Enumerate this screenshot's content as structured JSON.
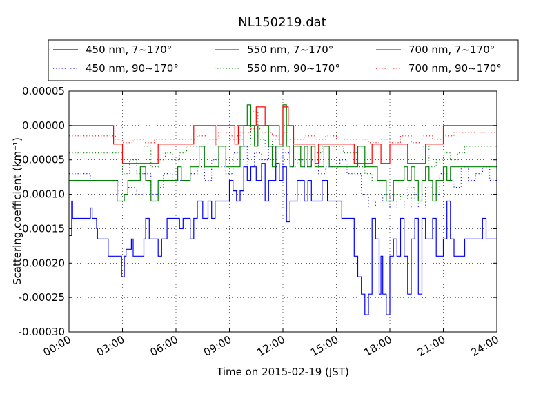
{
  "chart_data": {
    "type": "line",
    "title": "NL150219.dat",
    "xlabel": "Time on 2015-02-19 (JST)",
    "ylabel": "Scattering coefficient (km⁻¹)",
    "xlim": [
      0,
      24
    ],
    "ylim": [
      -0.0003,
      5e-05
    ],
    "x_tick_labels": [
      "00:00",
      "03:00",
      "06:00",
      "09:00",
      "12:00",
      "15:00",
      "18:00",
      "21:00",
      "24:00"
    ],
    "y_tick_labels": [
      "0.00005",
      "0.00000",
      "-0.00005",
      "-0.00010",
      "-0.00015",
      "-0.00020",
      "-0.00025",
      "-0.00030"
    ],
    "grid": true,
    "legend_position": "top",
    "series": [
      {
        "name": "450 nm, 7∼170°",
        "color": "#0000ff",
        "style": "solid",
        "x": [
          0,
          0.15,
          0.2,
          0.35,
          0.4,
          0.5,
          1.1,
          1.2,
          1.3,
          1.5,
          1.55,
          1.6,
          2.0,
          2.1,
          2.2,
          2.8,
          2.9,
          2.95,
          3.1,
          3.2,
          3.5,
          3.6,
          4.0,
          4.2,
          4.3,
          4.5,
          5.0,
          5.2,
          5.5,
          6.0,
          6.2,
          6.4,
          6.6,
          6.8,
          7.0,
          7.2,
          7.5,
          7.8,
          8.0,
          8.2,
          8.5,
          9.0,
          9.2,
          9.4,
          9.6,
          9.8,
          10.0,
          10.2,
          10.5,
          10.8,
          11.0,
          11.2,
          11.4,
          11.6,
          11.8,
          12.0,
          12.2,
          12.4,
          12.6,
          12.8,
          13.0,
          13.2,
          13.4,
          13.6,
          13.8,
          14.0,
          14.2,
          14.5,
          14.8,
          15.0,
          15.3,
          15.6,
          16.0,
          16.2,
          16.4,
          16.6,
          16.8,
          17.0,
          17.2,
          17.4,
          17.5,
          17.6,
          17.8,
          18.0,
          18.2,
          18.4,
          18.6,
          18.8,
          19.0,
          19.2,
          19.4,
          19.6,
          19.8,
          20.0,
          20.2,
          20.4,
          20.6,
          20.8,
          21.0,
          21.2,
          21.4,
          21.6,
          22.0,
          22.2,
          22.5,
          23.0,
          23.2,
          23.4,
          24.0
        ],
        "y": [
          -0.00016,
          -0.00011,
          -0.000135,
          -0.000135,
          -0.000135,
          -0.000135,
          -0.000135,
          -0.00012,
          -0.000135,
          -0.000135,
          -0.00015,
          -0.000165,
          -0.000165,
          -0.000165,
          -0.00019,
          -0.00019,
          -0.00019,
          -0.00022,
          -0.00019,
          -0.00018,
          -0.000165,
          -0.00019,
          -0.00019,
          -0.000165,
          -0.000135,
          -0.000165,
          -0.00019,
          -0.000165,
          -0.000135,
          -0.000135,
          -0.00015,
          -0.000135,
          -0.000135,
          -0.000165,
          -0.000135,
          -0.00011,
          -0.000135,
          -0.00011,
          -0.000135,
          -0.00011,
          -0.00011,
          -8e-05,
          -9.5e-05,
          -0.00011,
          -9.5e-05,
          -6e-05,
          -8e-05,
          -6e-05,
          -8e-05,
          -5.5e-05,
          -0.00011,
          -8e-05,
          -8e-05,
          -5.5e-05,
          -8e-05,
          -6e-05,
          -0.00014,
          -0.00011,
          -0.00011,
          -8e-05,
          -8e-05,
          -0.00011,
          -8e-05,
          -0.00011,
          -0.00011,
          -0.00011,
          -8e-05,
          -0.00011,
          -0.00011,
          -0.00011,
          -0.000135,
          -0.000135,
          -0.00019,
          -0.00022,
          -0.000245,
          -0.000275,
          -0.000245,
          -0.000135,
          -0.000165,
          -0.000245,
          -0.00019,
          -0.000245,
          -0.000275,
          -0.00019,
          -0.000165,
          -0.00019,
          -0.000135,
          -0.00019,
          -0.000245,
          -0.000165,
          -0.000135,
          -0.000245,
          -0.000135,
          -0.000165,
          -0.000165,
          -0.000135,
          -0.00019,
          -0.00019,
          -0.000165,
          -0.00011,
          -0.000165,
          -0.00019,
          -0.00019,
          -0.000165,
          -0.000165,
          -0.000165,
          -0.000135,
          -0.000165,
          -0.000165
        ]
      },
      {
        "name": "450 nm, 90∼170°",
        "color": "#0000ff",
        "style": "dotted",
        "x": [
          0,
          0.5,
          1.2,
          1.6,
          2.2,
          2.8,
          3.3,
          3.8,
          4.2,
          4.6,
          5.0,
          5.3,
          5.8,
          6.3,
          6.8,
          7.2,
          7.6,
          8.0,
          8.4,
          8.8,
          9.2,
          9.6,
          10.0,
          10.4,
          10.8,
          11.2,
          11.6,
          12.0,
          12.4,
          12.8,
          13.2,
          13.6,
          14.0,
          14.4,
          14.8,
          15.2,
          15.6,
          16.0,
          16.4,
          16.8,
          17.2,
          17.6,
          18.0,
          18.4,
          18.8,
          19.2,
          19.6,
          20.0,
          20.4,
          20.8,
          21.2,
          21.6,
          22.0,
          22.4,
          22.8,
          23.2,
          23.6,
          24.0
        ],
        "y": [
          -7e-05,
          -7e-05,
          -8e-05,
          -8e-05,
          -8e-05,
          -0.0001,
          -9e-05,
          -0.0001,
          -7e-05,
          -0.0001,
          -9e-05,
          -7e-05,
          -8e-05,
          -8e-05,
          -7e-05,
          -6e-05,
          -8e-05,
          -5e-05,
          -6e-05,
          -7e-05,
          -4e-05,
          -3e-05,
          -6e-05,
          -4e-05,
          -5e-05,
          -3e-05,
          -6e-05,
          -4e-05,
          -6e-05,
          -5e-05,
          -6e-05,
          -5e-05,
          -7e-05,
          -6e-05,
          -6e-05,
          -5e-05,
          -7e-05,
          -7e-05,
          -0.0001,
          -0.00012,
          -0.00011,
          -0.0001,
          -0.00012,
          -0.00011,
          -0.00012,
          -0.0001,
          -0.00012,
          -9e-05,
          -0.0001,
          -7e-05,
          -8e-05,
          -9e-05,
          -6e-05,
          -8e-05,
          -7e-05,
          -6e-05,
          -8e-05,
          -8e-05
        ]
      },
      {
        "name": "550 nm, 7∼170°",
        "color": "#008000",
        "style": "solid",
        "x": [
          0,
          0.4,
          1.0,
          1.5,
          2.0,
          2.5,
          2.7,
          2.9,
          3.1,
          3.3,
          3.5,
          3.7,
          4.0,
          4.3,
          4.6,
          5.0,
          5.4,
          5.8,
          6.1,
          6.3,
          6.5,
          6.8,
          7.0,
          7.3,
          7.6,
          8.0,
          8.4,
          8.8,
          9.2,
          9.6,
          9.8,
          10.0,
          10.2,
          10.4,
          10.6,
          10.8,
          11.0,
          11.2,
          11.4,
          11.6,
          11.8,
          12.0,
          12.2,
          12.4,
          12.6,
          12.8,
          13.0,
          13.2,
          13.4,
          13.6,
          13.8,
          14.0,
          14.3,
          14.6,
          15.0,
          15.4,
          15.8,
          16.2,
          16.6,
          17.0,
          17.3,
          17.6,
          17.8,
          18.0,
          18.2,
          18.5,
          18.8,
          19.0,
          19.2,
          19.4,
          19.6,
          19.8,
          20.0,
          20.2,
          20.4,
          20.6,
          21.0,
          21.2,
          21.4,
          21.6,
          22.0,
          22.4,
          23.0,
          23.5,
          24.0
        ],
        "y": [
          -8e-05,
          -8e-05,
          -8e-05,
          -8e-05,
          -8e-05,
          -8e-05,
          -0.00011,
          -0.00011,
          -0.0001,
          -8e-05,
          -8e-05,
          -8e-05,
          -6e-05,
          -8e-05,
          -0.00011,
          -8e-05,
          -8e-05,
          -8e-05,
          -6e-05,
          -8e-05,
          -8e-05,
          -6e-05,
          -6e-05,
          -3e-05,
          -6e-05,
          -6e-05,
          -3e-05,
          -6e-05,
          -6e-05,
          -3e-05,
          0,
          3e-05,
          0,
          -3e-05,
          0,
          0,
          0,
          -3e-05,
          -6e-05,
          -3e-05,
          -3e-05,
          3e-05,
          -3e-05,
          -6e-05,
          -3e-05,
          -3e-05,
          -6e-05,
          -3e-05,
          -6e-05,
          -3e-05,
          -6e-05,
          -6e-05,
          -3e-05,
          -6e-05,
          -6e-05,
          -6e-05,
          -6e-05,
          -3e-05,
          -6e-05,
          -6e-05,
          -8e-05,
          -8e-05,
          -0.00011,
          -0.00011,
          -8e-05,
          -8e-05,
          -6e-05,
          -8e-05,
          -6e-05,
          -8e-05,
          -0.00011,
          -8e-05,
          -6e-05,
          -8e-05,
          -0.00011,
          -8e-05,
          -6e-05,
          -8e-05,
          -6e-05,
          -6e-05,
          -6e-05,
          -6e-05,
          -6e-05,
          -6e-05,
          -6e-05
        ]
      },
      {
        "name": "550 nm, 90∼170°",
        "color": "#008000",
        "style": "dotted",
        "x": [
          0,
          0.6,
          1.2,
          1.8,
          2.4,
          3.0,
          3.4,
          3.8,
          4.2,
          4.6,
          5.0,
          5.4,
          5.8,
          6.2,
          6.6,
          7.0,
          7.4,
          7.8,
          8.2,
          8.6,
          9.0,
          9.4,
          9.8,
          10.2,
          10.6,
          11.0,
          11.4,
          11.8,
          12.2,
          12.6,
          13.0,
          13.4,
          13.8,
          14.2,
          14.6,
          15.0,
          15.4,
          15.8,
          16.2,
          16.6,
          17.0,
          17.4,
          17.8,
          18.2,
          18.6,
          19.0,
          19.4,
          19.8,
          20.2,
          20.6,
          21.0,
          21.4,
          21.8,
          22.2,
          22.6,
          23.0,
          23.4,
          24.0
        ],
        "y": [
          -4e-05,
          -4e-05,
          -4e-05,
          -4e-05,
          -4e-05,
          -7e-05,
          -5e-05,
          -7e-05,
          -3e-05,
          -6e-05,
          -5e-05,
          -4e-05,
          -5e-05,
          -4e-05,
          -3e-05,
          -3e-05,
          -3e-05,
          -2e-05,
          -3e-05,
          -3e-05,
          -2e-05,
          -2e-05,
          -3e-05,
          2e-05,
          -2e-05,
          -3e-05,
          -2e-05,
          -3e-05,
          -2e-05,
          -3e-05,
          -3e-05,
          -3e-05,
          -4e-05,
          -3e-05,
          -3e-05,
          -3e-05,
          -4e-05,
          -4e-05,
          -6e-05,
          -7e-05,
          -8e-05,
          -0.0001,
          -0.00011,
          -0.0001,
          -0.00011,
          -9e-05,
          -0.00011,
          -3e-05,
          -6e-05,
          -5e-05,
          -4e-05,
          -5e-05,
          -4e-05,
          -3e-05,
          -3e-05,
          -3e-05,
          -3e-05,
          -3e-05
        ]
      },
      {
        "name": "700 nm, 7∼170°",
        "color": "#ff0000",
        "style": "solid",
        "x": [
          0,
          0.5,
          1.0,
          1.5,
          2.0,
          2.4,
          2.5,
          2.9,
          3.0,
          3.5,
          4.0,
          4.5,
          5.0,
          5.5,
          5.9,
          6.2,
          6.5,
          7.0,
          7.2,
          7.5,
          8.0,
          8.2,
          8.3,
          8.6,
          9.0,
          9.3,
          9.5,
          9.8,
          10.0,
          10.5,
          10.6,
          11.0,
          11.2,
          11.6,
          11.8,
          12.0,
          12.3,
          12.6,
          13.0,
          13.5,
          13.8,
          14.0,
          14.2,
          14.6,
          15.0,
          15.5,
          16.0,
          16.5,
          17.0,
          17.5,
          18.0,
          18.5,
          18.8,
          19.0,
          19.5,
          20.0,
          20.5,
          21.0,
          21.5,
          22.0,
          22.5,
          23.0,
          24.0
        ],
        "y": [
          0,
          0,
          0,
          0,
          0,
          0,
          -2.7e-05,
          -2.7e-05,
          -5.5e-05,
          -5.5e-05,
          -5.5e-05,
          -5.5e-05,
          -2.7e-05,
          -2.7e-05,
          -2.7e-05,
          -2.7e-05,
          -2.7e-05,
          0,
          0,
          0,
          0,
          -2.7e-05,
          0,
          0,
          0,
          -2.7e-05,
          0,
          0,
          0,
          2.7e-05,
          2.7e-05,
          0,
          0,
          0,
          -2.7e-05,
          2.7e-05,
          0,
          -2.7e-05,
          -2.7e-05,
          -2.7e-05,
          -5.5e-05,
          -2.7e-05,
          -2.7e-05,
          -2.7e-05,
          -2.7e-05,
          -2.7e-05,
          -5.5e-05,
          -5.5e-05,
          -2.7e-05,
          -5.5e-05,
          -2.7e-05,
          -2.7e-05,
          -2.7e-05,
          -5.5e-05,
          -5.5e-05,
          -2.7e-05,
          -2.7e-05,
          0,
          0,
          0,
          0,
          0,
          0
        ]
      },
      {
        "name": "700 nm, 90∼170°",
        "color": "#ff0000",
        "style": "dotted",
        "x": [
          0,
          1.0,
          2.0,
          2.6,
          3.0,
          3.6,
          4.2,
          4.8,
          5.4,
          6.0,
          6.6,
          7.2,
          7.8,
          8.4,
          9.0,
          9.6,
          10.2,
          10.8,
          11.4,
          12.0,
          12.6,
          13.2,
          13.8,
          14.4,
          15.0,
          15.6,
          16.2,
          16.8,
          17.4,
          18.0,
          18.6,
          19.2,
          19.8,
          20.4,
          21.0,
          21.6,
          22.2,
          22.8,
          23.4,
          24.0
        ],
        "y": [
          -1.5e-05,
          -1.5e-05,
          -1.5e-05,
          -2e-05,
          -2.5e-05,
          -2e-05,
          -2.5e-05,
          -2e-05,
          -2e-05,
          -2e-05,
          -2e-05,
          -1.5e-05,
          -2e-05,
          -1e-05,
          -1.5e-05,
          -1e-05,
          -5e-06,
          -1e-05,
          -1.5e-05,
          -1e-05,
          -2e-05,
          -1.5e-05,
          -2e-05,
          -1.5e-05,
          -2e-05,
          -2e-05,
          -2e-05,
          -2.5e-05,
          -2e-05,
          -2.5e-05,
          -1.5e-05,
          -2.5e-05,
          -1.5e-05,
          -2e-05,
          -1.5e-05,
          -1e-05,
          -1e-05,
          -1e-05,
          -1e-05,
          -1e-05
        ]
      }
    ]
  }
}
